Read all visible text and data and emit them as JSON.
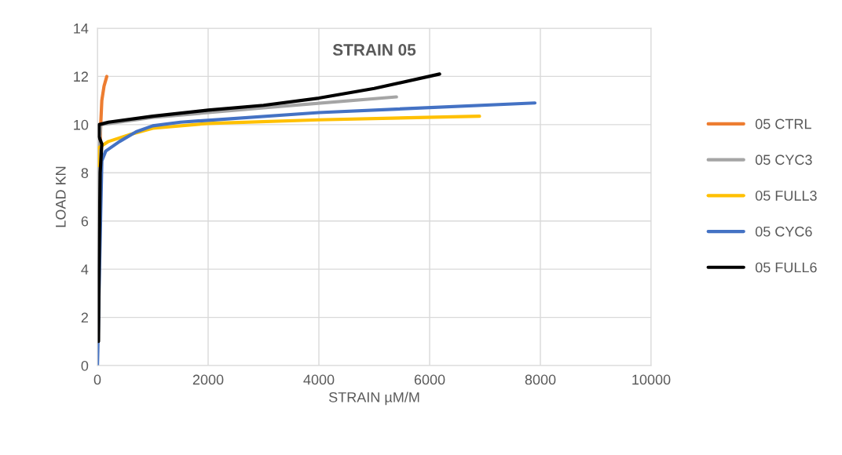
{
  "chart_data": {
    "type": "line",
    "title": "STRAIN 05",
    "xlabel": "STRAIN µM/M",
    "ylabel": "LOAD KN",
    "xlim": [
      0,
      10000
    ],
    "xticks": [
      0,
      2000,
      4000,
      6000,
      8000,
      10000
    ],
    "ylim": [
      0,
      14
    ],
    "yticks": [
      0,
      2,
      4,
      6,
      8,
      10,
      12,
      14
    ],
    "grid": true,
    "legend": "right",
    "marker": "none",
    "line_style": "solid",
    "series": [
      {
        "name": "05 CTRL",
        "color": "#ed7d31",
        "x": [
          40,
          60,
          80,
          120,
          170
        ],
        "values": [
          8.5,
          10,
          11,
          11.6,
          12
        ]
      },
      {
        "name": "05 CYC3",
        "color": "#a5a5a5",
        "x": [
          0,
          30,
          60,
          1000,
          3000,
          5400
        ],
        "values": [
          0,
          9,
          10,
          10.3,
          10.7,
          11.15
        ]
      },
      {
        "name": "05 FULL3",
        "color": "#ffc000",
        "x": [
          10,
          0,
          200,
          600,
          1000,
          2000,
          4000,
          6900
        ],
        "values": [
          8.3,
          9.0,
          9.3,
          9.6,
          9.85,
          10.05,
          10.2,
          10.35
        ]
      },
      {
        "name": "05 CYC6",
        "color": "#4472c4",
        "x": [
          0,
          10,
          80,
          150,
          400,
          700,
          1000,
          1500,
          4000,
          7900
        ],
        "values": [
          0,
          1,
          8.5,
          8.9,
          9.3,
          9.7,
          9.95,
          10.1,
          10.5,
          10.9
        ]
      },
      {
        "name": "05 FULL6",
        "color": "#000000",
        "x": [
          20,
          30,
          50,
          80,
          30,
          30,
          200,
          1000,
          2000,
          3000,
          4000,
          5000,
          6180
        ],
        "values": [
          1,
          4,
          8,
          9.2,
          9.5,
          10,
          10.1,
          10.35,
          10.6,
          10.8,
          11.1,
          11.5,
          12.1
        ]
      }
    ]
  }
}
